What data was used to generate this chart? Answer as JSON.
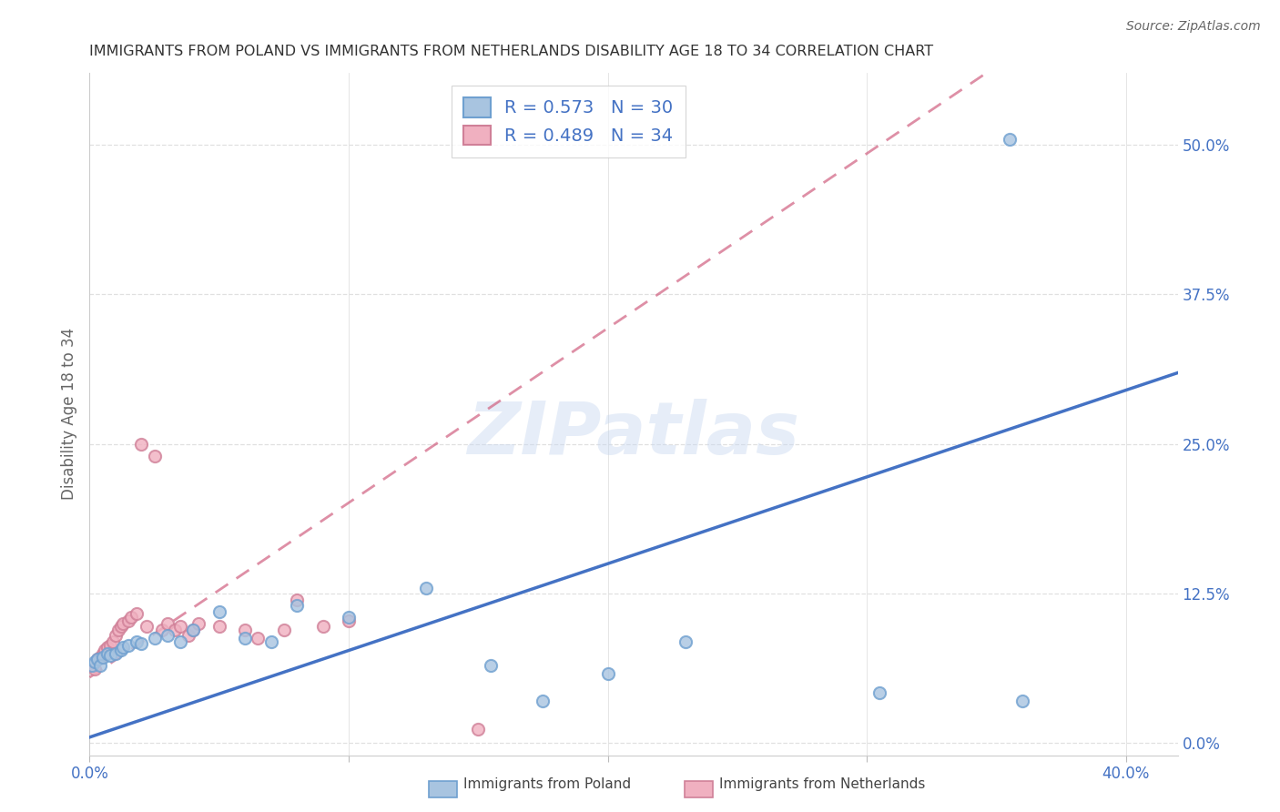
{
  "title": "IMMIGRANTS FROM POLAND VS IMMIGRANTS FROM NETHERLANDS DISABILITY AGE 18 TO 34 CORRELATION CHART",
  "source": "Source: ZipAtlas.com",
  "ylabel": "Disability Age 18 to 34",
  "xlim": [
    0.0,
    0.42
  ],
  "ylim": [
    -0.01,
    0.56
  ],
  "x_ticks": [
    0.0,
    0.1,
    0.2,
    0.3,
    0.4
  ],
  "x_tick_labels": [
    "0.0%",
    "",
    "",
    "",
    "40.0%"
  ],
  "y_ticks_right": [
    0.0,
    0.125,
    0.25,
    0.375,
    0.5
  ],
  "y_tick_labels_right": [
    "0.0%",
    "12.5%",
    "25.0%",
    "37.5%",
    "50.0%"
  ],
  "poland_line_color": "#4472c4",
  "poland_scatter_face": "#a8c4e0",
  "poland_scatter_edge": "#6fa0d0",
  "netherlands_line_color": "#d06080",
  "netherlands_scatter_face": "#f0b0c0",
  "netherlands_scatter_edge": "#d08098",
  "netherlands_line_dash": [
    6,
    4
  ],
  "poland_R": 0.573,
  "poland_N": 30,
  "netherlands_R": 0.489,
  "netherlands_N": 34,
  "poland_line_x0": 0.0,
  "poland_line_y0": 0.005,
  "poland_line_x1": 0.4,
  "poland_line_y1": 0.295,
  "netherlands_line_x0": 0.0,
  "netherlands_line_y0": 0.055,
  "netherlands_line_x1": 0.305,
  "netherlands_line_y1": 0.5,
  "poland_x": [
    0.001,
    0.002,
    0.003,
    0.004,
    0.005,
    0.007,
    0.008,
    0.01,
    0.012,
    0.013,
    0.015,
    0.018,
    0.02,
    0.025,
    0.03,
    0.035,
    0.04,
    0.05,
    0.06,
    0.07,
    0.08,
    0.1,
    0.13,
    0.155,
    0.175,
    0.2,
    0.23,
    0.305,
    0.36,
    0.355
  ],
  "poland_y": [
    0.065,
    0.068,
    0.07,
    0.065,
    0.072,
    0.075,
    0.073,
    0.075,
    0.078,
    0.08,
    0.082,
    0.085,
    0.083,
    0.088,
    0.09,
    0.085,
    0.095,
    0.11,
    0.088,
    0.085,
    0.115,
    0.105,
    0.13,
    0.065,
    0.035,
    0.058,
    0.085,
    0.042,
    0.035,
    0.505
  ],
  "netherlands_x": [
    0.001,
    0.002,
    0.003,
    0.004,
    0.005,
    0.006,
    0.007,
    0.008,
    0.009,
    0.01,
    0.011,
    0.012,
    0.013,
    0.015,
    0.016,
    0.018,
    0.02,
    0.022,
    0.025,
    0.028,
    0.03,
    0.033,
    0.035,
    0.038,
    0.04,
    0.042,
    0.05,
    0.06,
    0.065,
    0.075,
    0.08,
    0.09,
    0.1,
    0.15
  ],
  "netherlands_y": [
    0.065,
    0.062,
    0.07,
    0.072,
    0.075,
    0.078,
    0.08,
    0.082,
    0.085,
    0.09,
    0.095,
    0.098,
    0.1,
    0.102,
    0.105,
    0.108,
    0.25,
    0.098,
    0.24,
    0.095,
    0.1,
    0.095,
    0.098,
    0.09,
    0.095,
    0.1,
    0.098,
    0.095,
    0.088,
    0.095,
    0.12,
    0.098,
    0.102,
    0.012
  ],
  "watermark": "ZIPatlas",
  "background_color": "#ffffff",
  "grid_color": "#e0e0e0",
  "title_color": "#333333",
  "legend_text_color": "#4472c4"
}
